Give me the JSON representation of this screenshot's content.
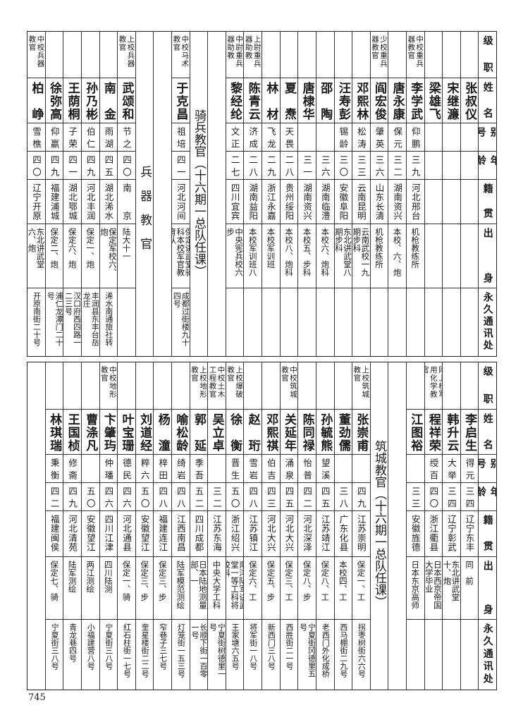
{
  "headers": {
    "rank": "级职",
    "name": "姓名",
    "alias": "别号",
    "age": "年龄",
    "native": "籍贯",
    "origin": "出身",
    "addr": "永久通讯处"
  },
  "top_table": [
    {
      "type": "person",
      "rank": "",
      "name": "张叔仪",
      "alias": "",
      "age": "",
      "native": "",
      "origin": "",
      "addr": ""
    },
    {
      "type": "person",
      "rank": "",
      "name": "宋继濂",
      "alias": "",
      "age": "",
      "native": "",
      "origin": "",
      "addr": ""
    },
    {
      "type": "person",
      "rank": "",
      "name": "梁雄飞",
      "alias": "",
      "age": "",
      "native": "",
      "origin": "",
      "addr": ""
    },
    {
      "type": "person",
      "rank": "中校重兵器教官",
      "name": "李学武",
      "alias": "仰鹏",
      "age": "三九",
      "native": "河北邢台",
      "origin": "机枪教练所",
      "addr": ""
    },
    {
      "type": "person",
      "rank": "",
      "name": "唐永康",
      "alias": "保元",
      "age": "三二",
      "native": "湖南资兴",
      "origin": "本校、六、炮",
      "addr": ""
    },
    {
      "type": "person",
      "rank": "少校重兵器教官",
      "name": "阎宏俊",
      "alias": "肇英",
      "age": "三六",
      "native": "山东长清",
      "origin": "机枪教练所",
      "addr": ""
    },
    {
      "type": "person",
      "rank": "",
      "name": "邓熙林",
      "alias": "松涛",
      "age": "三三",
      "native": "云南昆明",
      "origin": "云南武校一九期步科",
      "addr": ""
    },
    {
      "type": "person",
      "rank": "",
      "name": "汪寿彭",
      "alias": "锡龄",
      "age": "三〇",
      "native": "安徽阜阳",
      "origin": "东北讲武堂八期步科",
      "addr": ""
    },
    {
      "type": "person",
      "rank": "",
      "name": "邵　陶",
      "alias": "",
      "age": "三六",
      "native": "湖南临澧",
      "origin": "本校六、炮科",
      "addr": ""
    },
    {
      "type": "person",
      "rank": "",
      "name": "唐棣华",
      "alias": "",
      "age": "三一",
      "native": "湖南资兴",
      "origin": "本校五、步科",
      "addr": ""
    },
    {
      "type": "person",
      "rank": "",
      "name": "夏　焘",
      "alias": "天畏",
      "age": "二八",
      "native": "贵州绥阳",
      "origin": "本校八、炮科",
      "addr": ""
    },
    {
      "type": "person",
      "rank": "",
      "name": "林　材",
      "alias": "飞龙",
      "age": "二九",
      "native": "浙江永嘉",
      "origin": "本校军训班",
      "addr": ""
    },
    {
      "type": "person",
      "rank": "上尉重兵器助教",
      "name": "陈青云",
      "alias": "济成",
      "age": "二八",
      "native": "湖南益阳",
      "origin": "本校军训班八",
      "addr": ""
    },
    {
      "type": "person",
      "rank": "中尉重兵器助教",
      "name": "黎经纶",
      "alias": "文正",
      "age": "二七",
      "native": "四川宜宾",
      "origin": "中央宪兵校六步",
      "addr": ""
    },
    {
      "type": "blank"
    },
    {
      "type": "title",
      "text": "骑兵教官（十六期一总队任课）"
    },
    {
      "type": "person",
      "rank": "中校马术教官",
      "name": "于克昌",
      "alias": "祖培",
      "age": "四一",
      "native": "河北河间",
      "origin": "保定讲武堂骑科本校军官教育队",
      "addr": "成都过街楼九十四号"
    },
    {
      "type": "blank"
    },
    {
      "type": "title",
      "text": "兵　器　教　官"
    },
    {
      "type": "person",
      "rank": "上校兵器教官",
      "name": "武颂和",
      "alias": "节之",
      "age": "四〇",
      "native": "南　京",
      "origin": "陆大十一",
      "addr": ""
    },
    {
      "type": "person",
      "rank": "",
      "name": "南　金",
      "alias": "雨湖",
      "age": "四五",
      "native": "湖北浠水",
      "origin": "保定军校六、炮",
      "addr": "浠水南通旅社转"
    },
    {
      "type": "person",
      "rank": "",
      "name": "孙乃彬",
      "alias": "伯仁",
      "age": "四九",
      "native": "河北丰润",
      "origin": "保定一、炮",
      "addr": "丰润县东丰台岳龙庄"
    },
    {
      "type": "person",
      "rank": "",
      "name": "王荫桐",
      "alias": "子荣",
      "age": "四一",
      "native": "湖北鄂城",
      "origin": "保定六、炮",
      "addr": "汉口府西四路一二三号"
    },
    {
      "type": "person",
      "rank": "",
      "name": "徐弥高",
      "alias": "仰嬴",
      "age": "四九",
      "native": "福建浦城",
      "origin": "保定二、炮",
      "addr": "浦仁龙潭门二十号"
    },
    {
      "type": "person",
      "rank": "中校兵器教官",
      "name": "柏　峥",
      "alias": "雪樵",
      "age": "四〇",
      "native": "辽宁开原",
      "origin": "东北讲武堂六、炮",
      "addr": "开原南街二十号"
    }
  ],
  "bottom_table": [
    {
      "type": "person",
      "rank": "",
      "name": "李启生",
      "alias": "得元",
      "age": "三四",
      "native": "辽宁东丰",
      "origin": "同　前",
      "addr": ""
    },
    {
      "type": "person",
      "rank": "",
      "name": "韩升云",
      "alias": "大举",
      "age": "三四",
      "native": "辽宁彰武",
      "origin": "东北讲武堂十、炮",
      "addr": ""
    },
    {
      "type": "person",
      "rank": "同上校军用化学教官",
      "name": "程祥荣",
      "alias": "绶百",
      "age": "四〇",
      "native": "浙江衢县",
      "origin": "日本西京帝国大学毕业",
      "addr": ""
    },
    {
      "type": "person",
      "rank": "",
      "name": "江图裕",
      "alias": "",
      "age": "三三",
      "native": "安徽旌德",
      "origin": "日本东京高师",
      "addr": ""
    },
    {
      "type": "blank"
    },
    {
      "type": "title",
      "text": "筑城教官（十六期一总队任课）"
    },
    {
      "type": "person",
      "rank": "上校筑城教官",
      "name": "张崇甫",
      "alias": "",
      "age": "四九",
      "native": "江苏崇明",
      "origin": "保定一、工",
      "addr": "拐枣树街六六号"
    },
    {
      "type": "person",
      "rank": "",
      "name": "董劲儒",
      "alias": "",
      "age": "三八",
      "native": "广东化县",
      "origin": "本校四、工",
      "addr": "西马棚街二九号"
    },
    {
      "type": "person",
      "rank": "",
      "name": "孙毓熊",
      "alias": "望溪",
      "age": "四五",
      "native": "江苏靖江",
      "origin": "保定八、工",
      "addr": "老西门外化成桥"
    },
    {
      "type": "person",
      "rank": "",
      "name": "陈同禄",
      "alias": "怡普",
      "age": "四二",
      "native": "河北深泽",
      "origin": "保定八、步",
      "addr": "宁夏街冈德里五号"
    },
    {
      "type": "person",
      "rank": "中校筑城教官",
      "name": "关延年",
      "alias": "涌泉",
      "age": "四五",
      "native": "河北大兴",
      "origin": "保定三、工",
      "addr": "西胜街二一号"
    },
    {
      "type": "person",
      "rank": "",
      "name": "邓熙祺",
      "alias": "伯吉",
      "age": "四三",
      "native": "河北大兴",
      "origin": "保定五、步",
      "addr": "新西门三八号"
    },
    {
      "type": "person",
      "rank": "",
      "name": "赵　珩",
      "alias": "雪岩",
      "age": "四八",
      "native": "江苏镇江",
      "origin": "保定六、工",
      "addr": "将军街一八号"
    },
    {
      "type": "person",
      "rank": "上校爆破教官",
      "name": "徐　衡",
      "alias": "晋生",
      "age": "五〇",
      "native": "浙江绍兴",
      "origin": "南洋陆军讲武堂一等工科将校科",
      "addr": "王家塘六五号"
    },
    {
      "type": "person",
      "rank": "中校土木工程教官",
      "name": "吴立卓",
      "alias": "",
      "age": "三二",
      "native": "江苏东海",
      "origin": "中央大学工科",
      "addr": "宁夏街树德里一号"
    },
    {
      "type": "person",
      "rank": "上校地形教官",
      "name": "郭　延",
      "alias": "季吾",
      "age": "五二",
      "native": "四川成都",
      "origin": "日本陆地测量部、一",
      "addr": "长顺下街一百零一号"
    },
    {
      "type": "person",
      "rank": "",
      "name": "喻松龄",
      "alias": "绮岩",
      "age": "四八",
      "native": "江西南昌",
      "origin": "陆军模范测绘",
      "addr": "灯笼街一五三号"
    },
    {
      "type": "person",
      "rank": "",
      "name": "杨　潼",
      "alias": "梓田",
      "age": "四八",
      "native": "福建连江",
      "origin": "保定三、步",
      "addr": "窄巷子三七号"
    },
    {
      "type": "person",
      "rank": "",
      "name": "刘道经",
      "alias": "粹六",
      "age": "五〇",
      "native": "安徽望江",
      "origin": "保定三、步",
      "addr": "奎星楼街二二号"
    },
    {
      "type": "person",
      "rank": "",
      "name": "叶宝珊",
      "alias": "德民",
      "age": "四六",
      "native": "河北通县",
      "origin": "保定一、骑",
      "addr": "红石柱街一七号"
    },
    {
      "type": "person",
      "rank": "中校地形教官",
      "name": "卞肇玙",
      "alias": "仲璠",
      "age": "四六",
      "native": "四川江津",
      "origin": "四川陆测",
      "addr": "宁夏街三八号"
    },
    {
      "type": "person",
      "rank": "",
      "name": "曹涤凡",
      "alias": "",
      "age": "五〇",
      "native": "安徽望江",
      "origin": "两江测绘",
      "addr": "小福建营八号"
    },
    {
      "type": "person",
      "rank": "",
      "name": "王国桢",
      "alias": "修斋",
      "age": "四九",
      "native": "河北清苑",
      "origin": "陆军测绘",
      "addr": "青龙巷四号"
    },
    {
      "type": "person",
      "rank": "",
      "name": "林琪瑞",
      "alias": "秉衡",
      "age": "四二",
      "native": "福建闽侯",
      "origin": "保定七、骑",
      "addr": "宁夏街三八号"
    },
    {
      "type": "blank"
    }
  ],
  "page_number": "745"
}
